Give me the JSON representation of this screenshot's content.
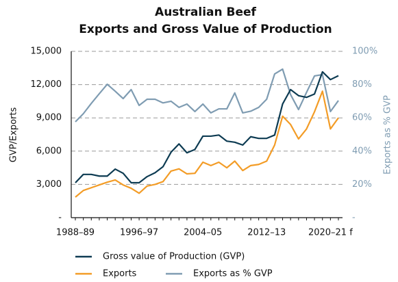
{
  "chart_data": {
    "type": "line",
    "title": "Australian Beef",
    "subtitle": "Exports and Gross Value of Production",
    "y_label": "GVP/Exports",
    "y2_label": "Exports as % GVP",
    "categories": [
      "1988–89",
      null,
      null,
      null,
      null,
      null,
      null,
      null,
      "1996–97",
      null,
      null,
      null,
      null,
      null,
      null,
      null,
      "2004–05",
      null,
      null,
      null,
      null,
      null,
      null,
      null,
      "2012–13",
      null,
      null,
      null,
      null,
      null,
      null,
      null,
      "2020–21 f",
      null
    ],
    "series": [
      {
        "name": "Gross value of Production (GVP)",
        "color": "#0d3b52",
        "values": [
          3150,
          3900,
          3900,
          3750,
          3750,
          4380,
          4000,
          3150,
          3150,
          3700,
          4050,
          4600,
          5900,
          6650,
          5850,
          6150,
          7350,
          7350,
          7450,
          6900,
          6800,
          6550,
          7300,
          7150,
          7150,
          7450,
          10250,
          11550,
          11000,
          10850,
          11150,
          13150,
          12450,
          12800
        ]
      },
      {
        "name": "Exports",
        "color": "#f39c26",
        "values": [
          1850,
          2450,
          2700,
          2950,
          3200,
          3400,
          2950,
          2650,
          2200,
          2850,
          3000,
          3250,
          4200,
          4400,
          3950,
          4000,
          5000,
          4700,
          5000,
          4500,
          5100,
          4250,
          4700,
          4800,
          5100,
          6550,
          9150,
          8400,
          7100,
          8000,
          9550,
          11400,
          8000,
          9000
        ]
      },
      {
        "name": "Exports as % GVP",
        "color": "#7f9cb2",
        "axis": "y2",
        "values": [
          57.6,
          62.5,
          68.7,
          74.5,
          80.2,
          76,
          71.6,
          77,
          67.5,
          71.2,
          71.2,
          69,
          70,
          66.3,
          68.3,
          63.8,
          68.3,
          63,
          65.4,
          65.4,
          75,
          63,
          64,
          66.3,
          71.2,
          86.4,
          89.3,
          74,
          65,
          75.3,
          85.2,
          86,
          63.8,
          70.4
        ]
      }
    ],
    "ylim": [
      0,
      15000
    ],
    "yticks": [
      {
        "value": 0,
        "label": "-"
      },
      {
        "value": 3000,
        "label": "3,000"
      },
      {
        "value": 6000,
        "label": "6,000"
      },
      {
        "value": 9000,
        "label": "9,000"
      },
      {
        "value": 12000,
        "label": "12,000"
      },
      {
        "value": 15000,
        "label": "15,000"
      }
    ],
    "y2lim": [
      0,
      100
    ],
    "y2ticks": [
      {
        "value": 0,
        "label": "-"
      },
      {
        "value": 20,
        "label": "20%"
      },
      {
        "value": 40,
        "label": "40%"
      },
      {
        "value": 60,
        "label": "60%"
      },
      {
        "value": 80,
        "label": "80%"
      },
      {
        "value": 100,
        "label": "100%"
      }
    ],
    "grid": true
  }
}
